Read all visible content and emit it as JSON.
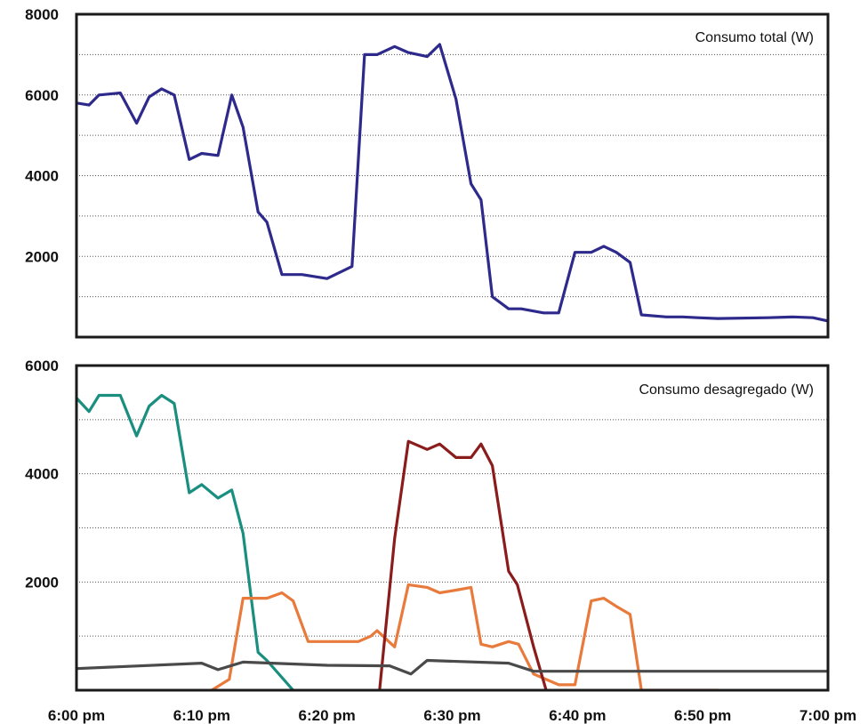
{
  "chart_data": [
    {
      "type": "line",
      "title": "Consumo total (W)",
      "xlabel": "",
      "ylabel": "",
      "xlim": [
        0,
        60
      ],
      "ylim": [
        0,
        8000
      ],
      "y_ticks": [
        "8000",
        "6000",
        "4000",
        "2000"
      ],
      "y_tick_values": [
        8000,
        6000,
        4000,
        2000
      ],
      "grid": true,
      "series": [
        {
          "color": "#2e2a8c",
          "x": [
            0,
            1,
            1.8,
            3.5,
            4.8,
            5.8,
            6.8,
            7.8,
            9,
            10,
            11.3,
            12.4,
            13.3,
            14.5,
            15.2,
            16.4,
            18,
            20,
            22,
            23,
            24,
            25.4,
            26.5,
            28,
            29,
            30.3,
            31.5,
            32.3,
            33.2,
            34.5,
            35.5,
            37.3,
            38.5,
            39.8,
            41.1,
            42.1,
            43.1,
            44.2,
            45.1,
            47.1,
            48.4,
            49.6,
            51.2,
            55.2,
            57.2,
            58.8,
            60
          ],
          "y": [
            5800,
            5750,
            6000,
            6050,
            5300,
            5950,
            6150,
            6000,
            4400,
            4550,
            4500,
            6000,
            5200,
            3100,
            2850,
            1550,
            1550,
            1450,
            1750,
            7000,
            7000,
            7200,
            7050,
            6950,
            7250,
            5900,
            3800,
            3400,
            1000,
            700,
            700,
            600,
            600,
            2100,
            2100,
            2250,
            2100,
            1850,
            550,
            500,
            500,
            480,
            460,
            480,
            500,
            480,
            400
          ]
        }
      ]
    },
    {
      "type": "line",
      "title": "Consumo desagregado (W)",
      "xlabel": "",
      "ylabel": "",
      "xlim": [
        0,
        60
      ],
      "ylim": [
        0,
        6000
      ],
      "y_ticks": [
        "6000",
        "4000",
        "2000"
      ],
      "y_tick_values": [
        6000,
        4000,
        2000
      ],
      "x_ticks": [
        "6:00 pm",
        "6:10 pm",
        "6:20 pm",
        "6:30 pm",
        "6:40 pm",
        "6:50 pm",
        "7:00 pm"
      ],
      "x_tick_values": [
        0,
        10,
        20,
        30,
        40,
        50,
        60
      ],
      "grid": true,
      "series": [
        {
          "color": "#1a8f80",
          "x": [
            0,
            1,
            1.8,
            3.5,
            4.8,
            5.8,
            6.8,
            7.8,
            9,
            10,
            11.3,
            12.4,
            13.3,
            14.5,
            15.2,
            17.3
          ],
          "y": [
            5400,
            5150,
            5450,
            5450,
            4700,
            5250,
            5450,
            5300,
            3650,
            3800,
            3550,
            3700,
            2900,
            700,
            550,
            0
          ]
        },
        {
          "color": "#e87a3c",
          "x": [
            10.8,
            12.2,
            13.3,
            14.5,
            15.2,
            16.4,
            17.3,
            18.5,
            19.5,
            21.5,
            22.5,
            23.5,
            24,
            25.4,
            26.5,
            28,
            29,
            30.3,
            31.5,
            32.3,
            33.2,
            34.5,
            35.3,
            36.5,
            38.5,
            39.8,
            41.1,
            42.1,
            43.1,
            44.2,
            45.1,
            49.6,
            51.2
          ],
          "y": [
            0,
            200,
            1700,
            1700,
            1700,
            1800,
            1650,
            900,
            900,
            900,
            900,
            1000,
            1100,
            800,
            1950,
            1900,
            1800,
            1850,
            1900,
            850,
            800,
            900,
            850,
            300,
            100,
            100,
            1650,
            1700,
            1550,
            1400,
            0,
            0,
            0
          ]
        },
        {
          "color": "#8a1c1c",
          "x": [
            24.2,
            25.4,
            26.5,
            28,
            29,
            30.3,
            31.5,
            32.3,
            33.2,
            34.5,
            35.2,
            36.5,
            37.5
          ],
          "y": [
            0,
            2800,
            4600,
            4450,
            4550,
            4300,
            4300,
            4550,
            4150,
            2200,
            1950,
            800,
            0
          ]
        },
        {
          "color": "#4a4a4a",
          "x": [
            0,
            10,
            11.3,
            13.3,
            20,
            25,
            26.7,
            28,
            34.5,
            36.5,
            38.5,
            60
          ],
          "y": [
            400,
            500,
            380,
            520,
            460,
            450,
            300,
            550,
            500,
            350,
            350,
            350
          ]
        }
      ]
    }
  ]
}
